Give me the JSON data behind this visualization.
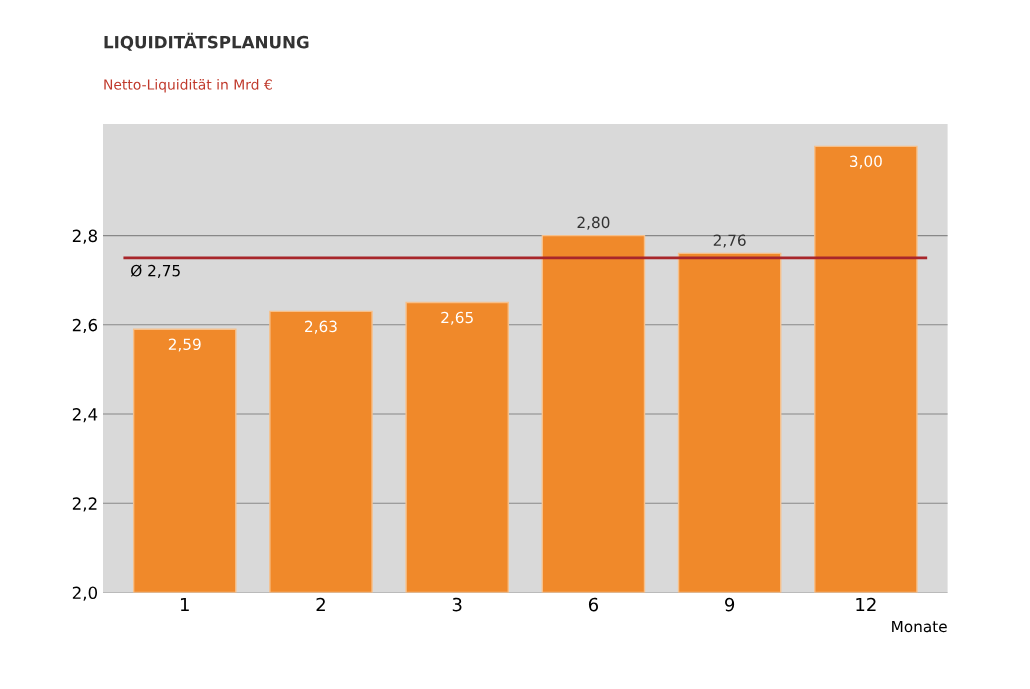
{
  "chart_data": {
    "type": "bar",
    "title": "LIQUIDITÄTSPLANUNG",
    "subtitle": "Netto-Liquidität in Mrd €",
    "xlabel": "Monate",
    "categories": [
      "1",
      "2",
      "3",
      "6",
      "9",
      "12"
    ],
    "values": [
      2.59,
      2.63,
      2.65,
      2.8,
      2.76,
      3.0
    ],
    "value_labels": [
      "2,59",
      "2,63",
      "2,65",
      "2,80",
      "2,76",
      "3,00"
    ],
    "color": "#f0892a",
    "ylim": [
      2.0,
      3.05
    ],
    "yticks": [
      {
        "value": 2.0,
        "label": "2,0"
      },
      {
        "value": 2.2,
        "label": "2,2"
      },
      {
        "value": 2.4,
        "label": "2,4"
      },
      {
        "value": 2.6,
        "label": "2,6"
      },
      {
        "value": 2.8,
        "label": "2,8"
      }
    ],
    "ref_lines": [
      {
        "axis": "y",
        "value": 2.75,
        "label": "Ø 2,75",
        "color": "#a8262b",
        "line_style": "solid"
      }
    ],
    "grid": "y",
    "legend": false
  }
}
